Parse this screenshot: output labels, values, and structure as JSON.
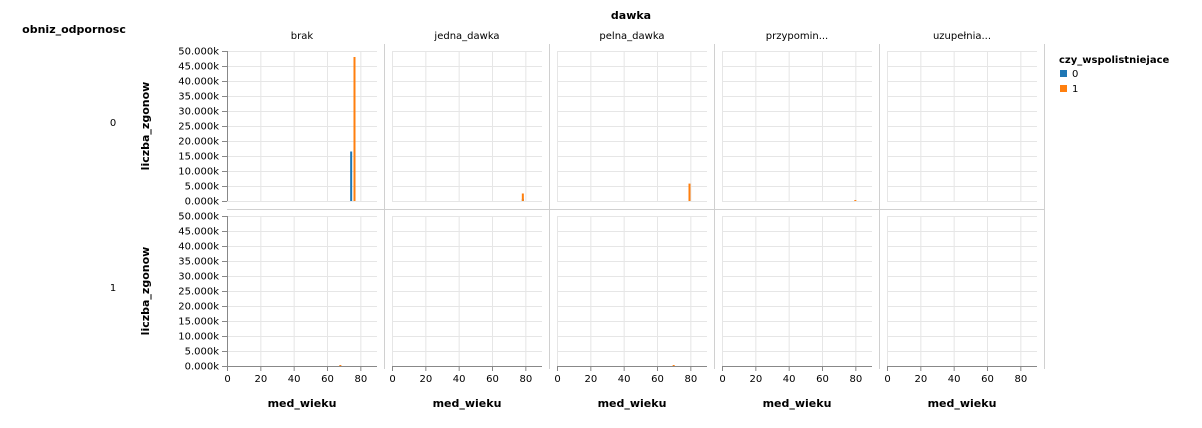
{
  "chart_data": {
    "type": "bar",
    "column_title": "dawka",
    "row_title": "obniz_odpornosc",
    "columns": [
      "brak",
      "jedna_dawka",
      "pelna_dawka",
      "przypomin...",
      "uzupełnia..."
    ],
    "rows": [
      "0",
      "1"
    ],
    "xlabel": "med_wieku",
    "ylabel": "liczba_zgonow",
    "xlim": [
      0,
      90
    ],
    "x_ticks": [
      0,
      20,
      40,
      60,
      80
    ],
    "ylim": [
      0,
      50000
    ],
    "y_ticks": [
      "0.000k",
      "5.000k",
      "10.000k",
      "15.000k",
      "20.000k",
      "25.000k",
      "30.000k",
      "35.000k",
      "40.000k",
      "45.000k",
      "50.000k"
    ],
    "grid": true,
    "legend": {
      "title": "czy_wspolistniejace",
      "position": "top-right",
      "items": [
        {
          "label": "0",
          "color": "#1f77b4"
        },
        {
          "label": "1",
          "color": "#ff7f0e"
        }
      ]
    },
    "bars": [
      {
        "row": "0",
        "column": "brak",
        "series": "0",
        "x": 74.5,
        "y": 16500
      },
      {
        "row": "0",
        "column": "brak",
        "series": "1",
        "x": 76.5,
        "y": 48000
      },
      {
        "row": "0",
        "column": "jedna_dawka",
        "series": "0",
        "x": 78.5,
        "y": 700
      },
      {
        "row": "0",
        "column": "jedna_dawka",
        "series": "1",
        "x": 78.5,
        "y": 2500
      },
      {
        "row": "0",
        "column": "pelna_dawka",
        "series": "0",
        "x": 79.5,
        "y": 1800
      },
      {
        "row": "0",
        "column": "pelna_dawka",
        "series": "1",
        "x": 79.5,
        "y": 5800
      },
      {
        "row": "0",
        "column": "przypomin...",
        "series": "1",
        "x": 80,
        "y": 300
      },
      {
        "row": "1",
        "column": "brak",
        "series": "1",
        "x": 68,
        "y": 100
      },
      {
        "row": "1",
        "column": "pelna_dawka",
        "series": "1",
        "x": 70,
        "y": 100
      }
    ]
  }
}
